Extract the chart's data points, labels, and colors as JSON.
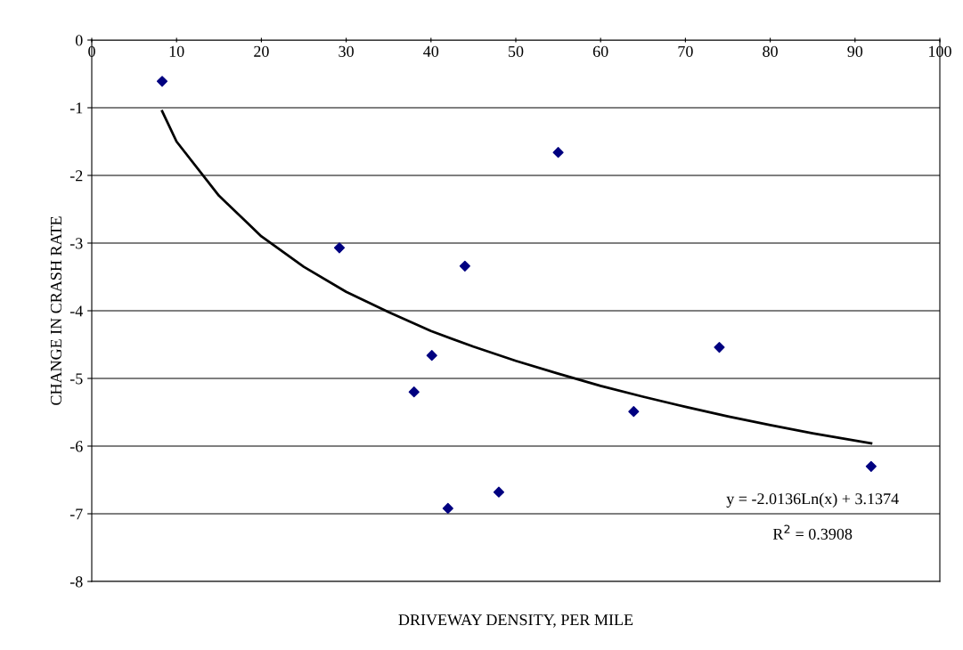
{
  "chart_data": {
    "type": "scatter",
    "xlabel": "DRIVEWAY DENSITY, PER MILE",
    "ylabel": "CHANGE IN CRASH RATE",
    "xlim": [
      0,
      100
    ],
    "xticks": [
      0,
      10,
      20,
      30,
      40,
      50,
      60,
      70,
      80,
      90,
      100
    ],
    "ylim": [
      -8,
      0
    ],
    "yticks": [
      -8,
      -7,
      -6,
      -5,
      -4,
      -3,
      -2,
      -1,
      0
    ],
    "grid": "y",
    "marker": "diamond",
    "legend": false,
    "series": [
      {
        "color": "#000080",
        "x": [
          8.3,
          29.2,
          38.0,
          40.1,
          42.0,
          44.0,
          48.0,
          55.0,
          63.9,
          74.0,
          91.9
        ],
        "values": [
          -0.61,
          -3.07,
          -5.2,
          -4.66,
          -6.92,
          -3.34,
          -6.68,
          -1.66,
          -5.49,
          -4.54,
          -6.3
        ]
      },
      {
        "type": "line",
        "color": "#000000",
        "line_style": "solid",
        "marker": "none",
        "x": [
          8.3,
          10,
          15,
          20,
          25,
          30,
          35,
          40,
          45,
          50,
          55,
          60,
          65,
          70,
          75,
          80,
          85,
          91.9
        ],
        "values": [
          -1.05,
          -1.5,
          -2.3,
          -2.9,
          -3.35,
          -3.72,
          -4.02,
          -4.3,
          -4.53,
          -4.74,
          -4.93,
          -5.11,
          -5.27,
          -5.42,
          -5.56,
          -5.69,
          -5.81,
          -5.96
        ]
      }
    ],
    "annotations": [
      "y = -2.0136Ln(x) + 3.1374",
      "R$^{2}$ = 0.3908"
    ]
  }
}
